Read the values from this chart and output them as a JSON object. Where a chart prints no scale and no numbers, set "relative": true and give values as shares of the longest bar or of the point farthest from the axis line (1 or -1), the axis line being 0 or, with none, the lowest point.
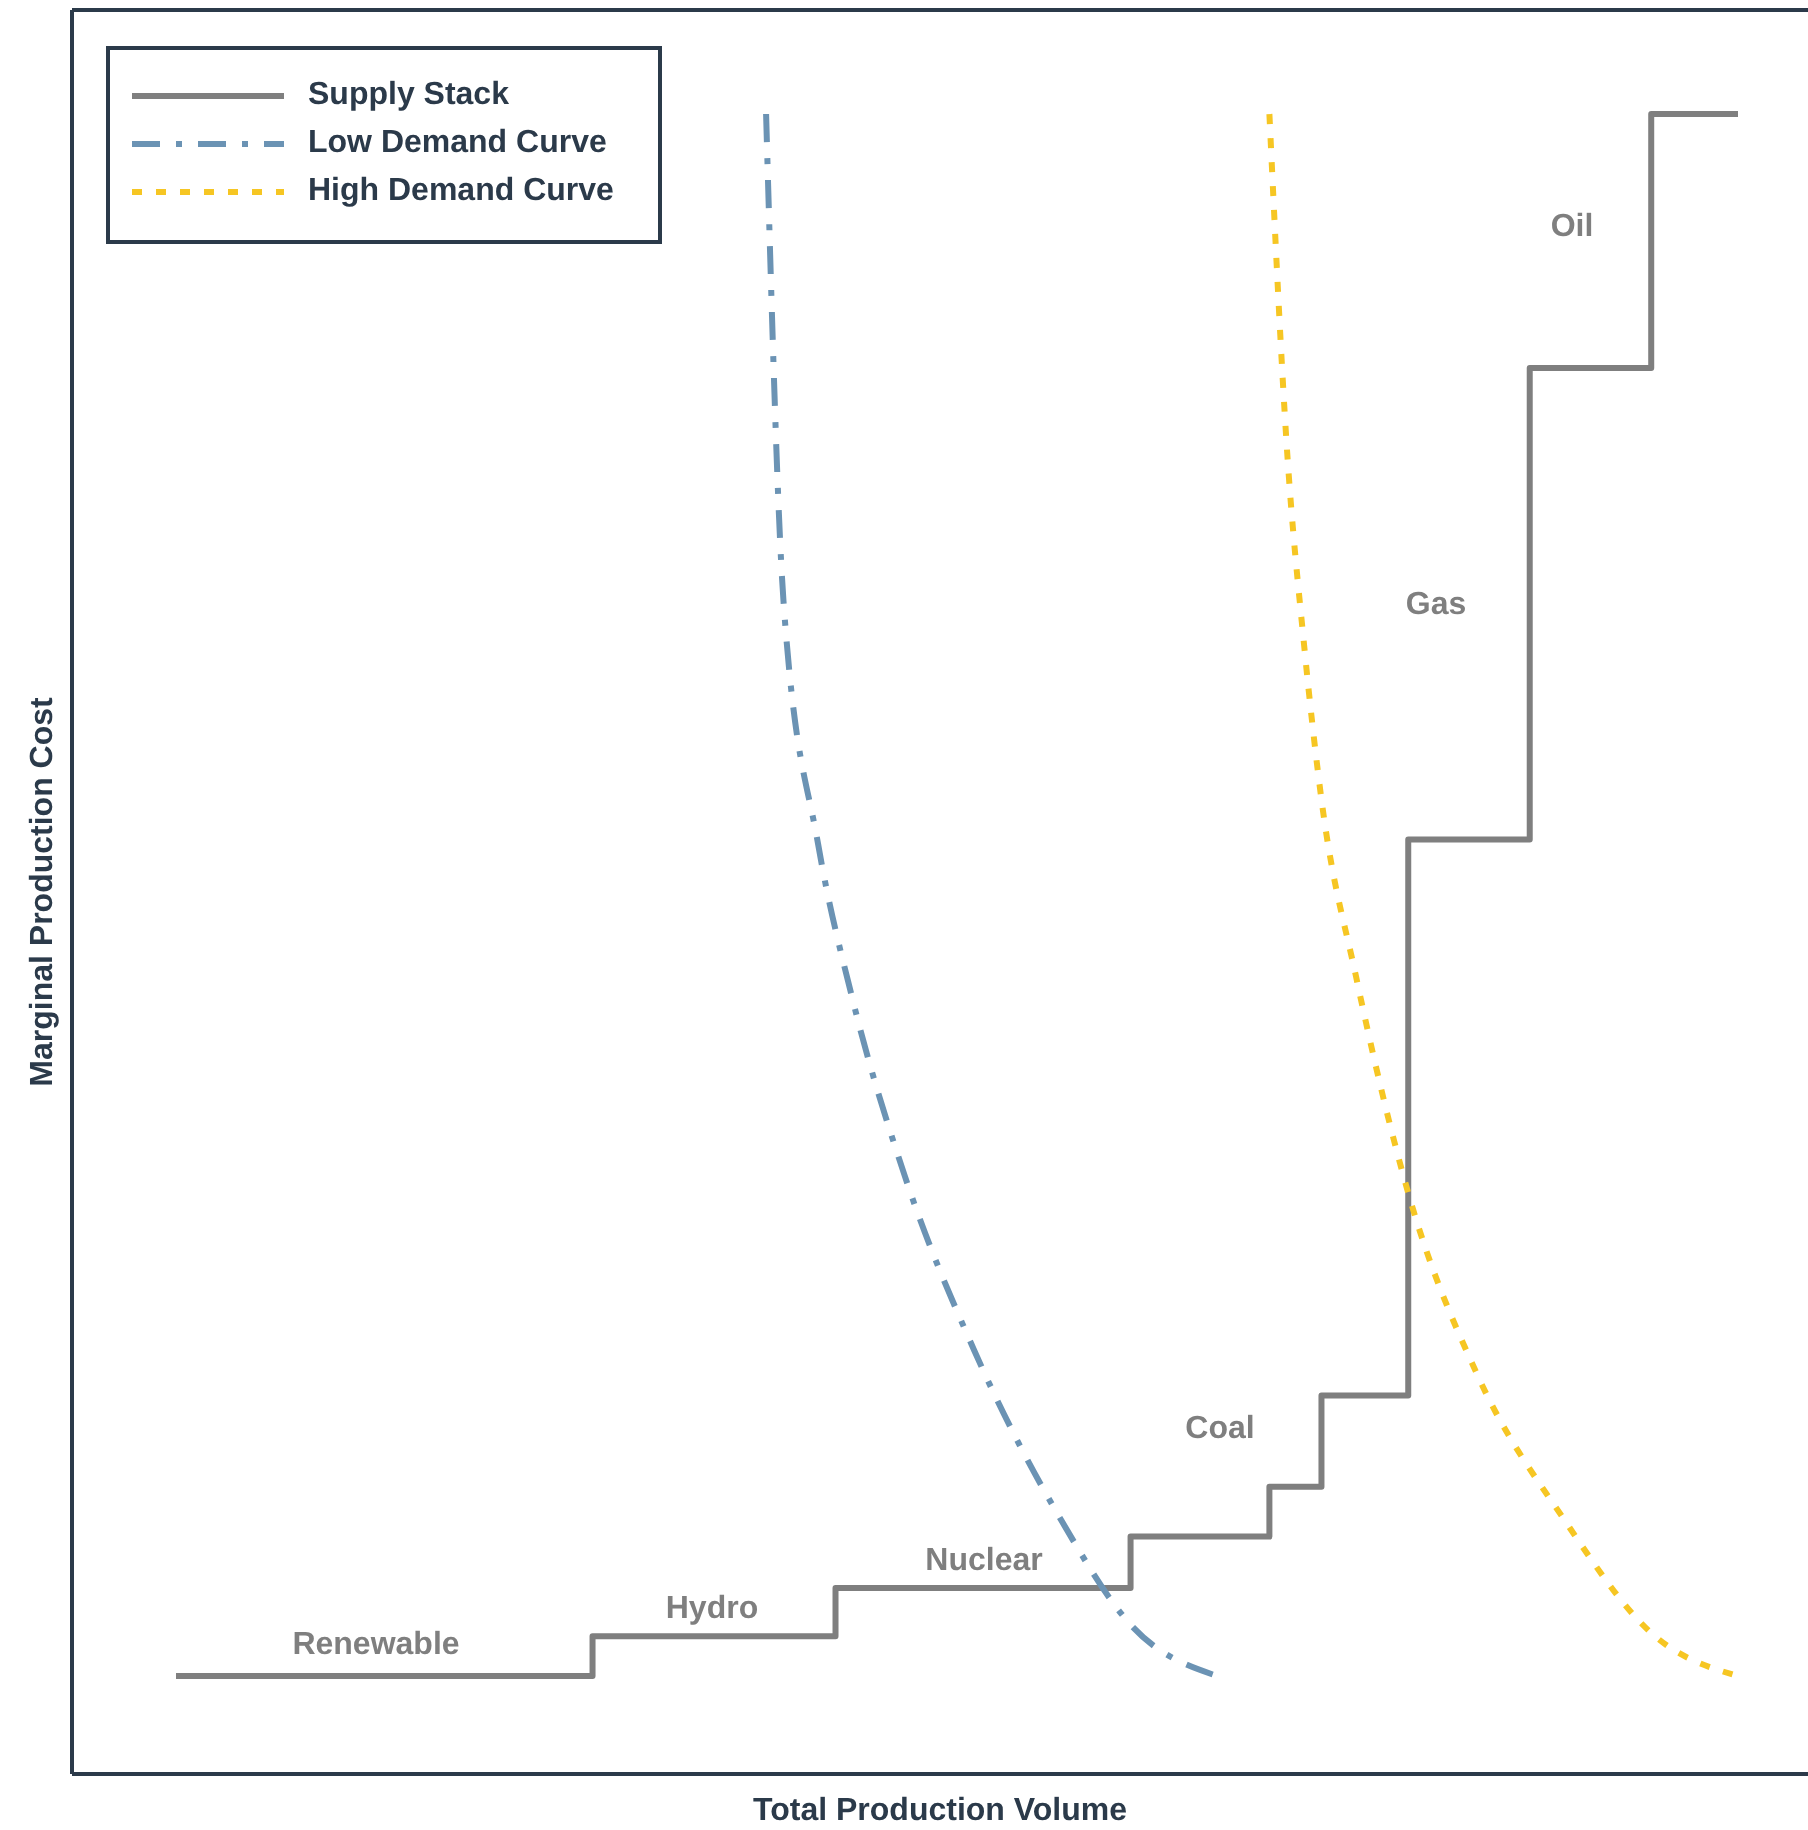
{
  "chart_data": {
    "type": "line",
    "xlabel": "Total Production Volume",
    "ylabel": "Marginal Production Cost",
    "relative": true,
    "legend": "top left",
    "categories": [
      null,
      null,
      null,
      null,
      null,
      null,
      null,
      null,
      null,
      null,
      null,
      null,
      null,
      null,
      null,
      null,
      null,
      null,
      null,
      null,
      null,
      null,
      null,
      null,
      null,
      null,
      null,
      null,
      null,
      null,
      null,
      null,
      null,
      null,
      null,
      null,
      null,
      null,
      null,
      null,
      null,
      null,
      null,
      null,
      null,
      null,
      null,
      null,
      null,
      null,
      null,
      null,
      null,
      null,
      null,
      null,
      null,
      null,
      null,
      null,
      null,
      null,
      null,
      null,
      null,
      null,
      null,
      null,
      null,
      null,
      null,
      null,
      null,
      null,
      null,
      null,
      null,
      null,
      null,
      null,
      null,
      null,
      null,
      null,
      null,
      null,
      null,
      null,
      null,
      null,
      null
    ],
    "series": [
      {
        "name": "Supply Stack",
        "type": "step",
        "color": "#7f7f7f",
        "line_style": "solid",
        "values": [
          0.059,
          null,
          null,
          null,
          null,
          null,
          null,
          null,
          null,
          null,
          null,
          null,
          null,
          null,
          null,
          null,
          null,
          null,
          null,
          null,
          null,
          null,
          null,
          null,
          0.083,
          null,
          null,
          null,
          null,
          null,
          null,
          null,
          null,
          null,
          null,
          null,
          null,
          null,
          0.112,
          null,
          null,
          null,
          null,
          null,
          null,
          null,
          null,
          null,
          null,
          null,
          null,
          null,
          null,
          null,
          null,
          0.143,
          null,
          null,
          null,
          null,
          null,
          null,
          null,
          0.173,
          null,
          null,
          0.228,
          null,
          null,
          null,
          null,
          0.563,
          null,
          null,
          null,
          null,
          null,
          null,
          0.847,
          null,
          null,
          null,
          null,
          null,
          null,
          1,
          null,
          null,
          null,
          null,
          1
        ]
      },
      {
        "name": "Low Demand Curve",
        "type": "line",
        "color": "#6b93b4",
        "line_style": "dashed",
        "values": [
          null,
          null,
          null,
          null,
          null,
          null,
          null,
          null,
          null,
          null,
          null,
          null,
          null,
          null,
          null,
          null,
          null,
          null,
          null,
          null,
          null,
          null,
          null,
          null,
          null,
          null,
          null,
          null,
          null,
          null,
          null,
          null,
          null,
          null,
          1,
          0.707,
          null,
          0.56,
          null,
          0.466,
          null,
          null,
          0.36,
          null,
          null,
          null,
          0.255,
          null,
          null,
          null,
          null,
          0.153,
          null,
          null,
          null,
          0.09,
          null,
          null,
          null,
          null,
          0.059,
          null,
          null,
          null,
          null,
          null,
          null,
          null,
          null,
          null,
          null,
          null,
          null,
          null,
          null,
          null,
          null,
          null,
          null,
          null,
          null,
          null,
          null,
          null,
          null,
          null,
          null,
          null,
          null,
          null,
          null
        ]
      },
      {
        "name": "High Demand Curve",
        "type": "line",
        "color": "#f6c623",
        "line_style": "dotted",
        "values": [
          null,
          null,
          null,
          null,
          null,
          null,
          null,
          null,
          null,
          null,
          null,
          null,
          null,
          null,
          null,
          null,
          null,
          null,
          null,
          null,
          null,
          null,
          null,
          null,
          null,
          null,
          null,
          null,
          null,
          null,
          null,
          null,
          null,
          null,
          null,
          null,
          null,
          null,
          null,
          null,
          null,
          null,
          null,
          null,
          null,
          null,
          null,
          null,
          null,
          null,
          null,
          null,
          null,
          null,
          null,
          null,
          null,
          null,
          null,
          null,
          null,
          null,
          null,
          1,
          0.8,
          0.68,
          0.587,
          null,
          0.48,
          null,
          null,
          0.35,
          null,
          null,
          null,
          0.24,
          null,
          null,
          null,
          null,
          0.153,
          null,
          null,
          null,
          null,
          0.085,
          null,
          null,
          null,
          null,
          0.059
        ]
      }
    ],
    "annotations": [
      "Renewable",
      "Hydro",
      "Nuclear",
      "Coal",
      "Gas",
      "Oil"
    ]
  }
}
